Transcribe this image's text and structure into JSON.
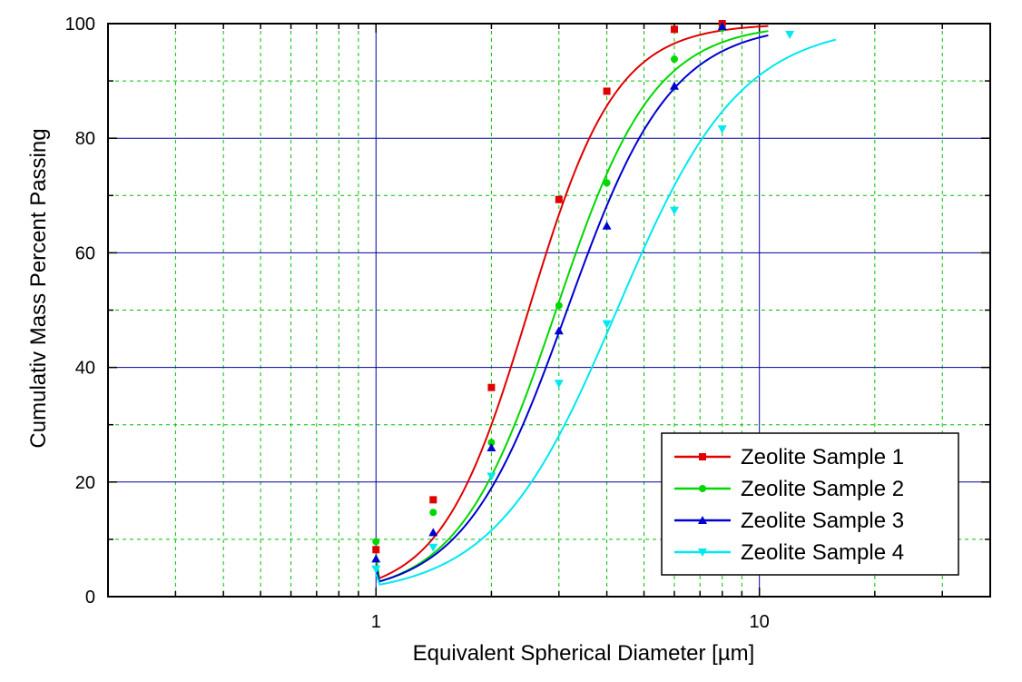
{
  "chart_data": {
    "type": "line",
    "title": "",
    "xlabel": "Equivalent Spherical Diameter [µm]",
    "ylabel": "Cumulativ Mass Percent Passing",
    "x_scale": "log",
    "xlim": [
      0.2,
      40
    ],
    "ylim": [
      0,
      100
    ],
    "x_ticks": [
      {
        "value": 1,
        "label": "1"
      },
      {
        "value": 10,
        "label": "10"
      }
    ],
    "y_ticks": [
      {
        "value": 0,
        "label": "0"
      },
      {
        "value": 20,
        "label": "20"
      },
      {
        "value": 40,
        "label": "40"
      },
      {
        "value": 60,
        "label": "60"
      },
      {
        "value": 80,
        "label": "80"
      },
      {
        "value": 100,
        "label": "100"
      }
    ],
    "grid": true,
    "legend_position": "bottom-right",
    "series": [
      {
        "name": "Zeolite Sample 1",
        "color": "#e00000",
        "marker": "square",
        "x": [
          1,
          1.41,
          2,
          3,
          4,
          6,
          8
        ],
        "y": [
          8.2,
          16.9,
          36.5,
          69.3,
          88.2,
          99.0,
          100
        ],
        "fit_x0": 2.5,
        "fit_p": 3.8
      },
      {
        "name": "Zeolite Sample 2",
        "color": "#00d800",
        "marker": "circle",
        "x": [
          1,
          1.41,
          2,
          3,
          4,
          6,
          8
        ],
        "y": [
          9.6,
          14.7,
          26.9,
          50.8,
          72.2,
          93.8,
          99.2
        ],
        "fit_x0": 2.95,
        "fit_p": 3.4
      },
      {
        "name": "Zeolite Sample 3",
        "color": "#0000d0",
        "marker": "triangle-up",
        "x": [
          1,
          1.41,
          2,
          3,
          4,
          6,
          8
        ],
        "y": [
          6.6,
          11.2,
          26.0,
          46.4,
          64.7,
          89.1,
          99.5
        ],
        "fit_x0": 3.15,
        "fit_p": 3.2
      },
      {
        "name": "Zeolite Sample 4",
        "color": "#00e8f0",
        "marker": "triangle-down",
        "x": [
          1,
          1.41,
          2,
          3,
          4,
          6,
          8,
          12
        ],
        "y": [
          4.8,
          8.6,
          21.0,
          37.2,
          47.6,
          67.4,
          81.6,
          98.1
        ],
        "fit_x0": 4.25,
        "fit_p": 2.7
      }
    ]
  }
}
